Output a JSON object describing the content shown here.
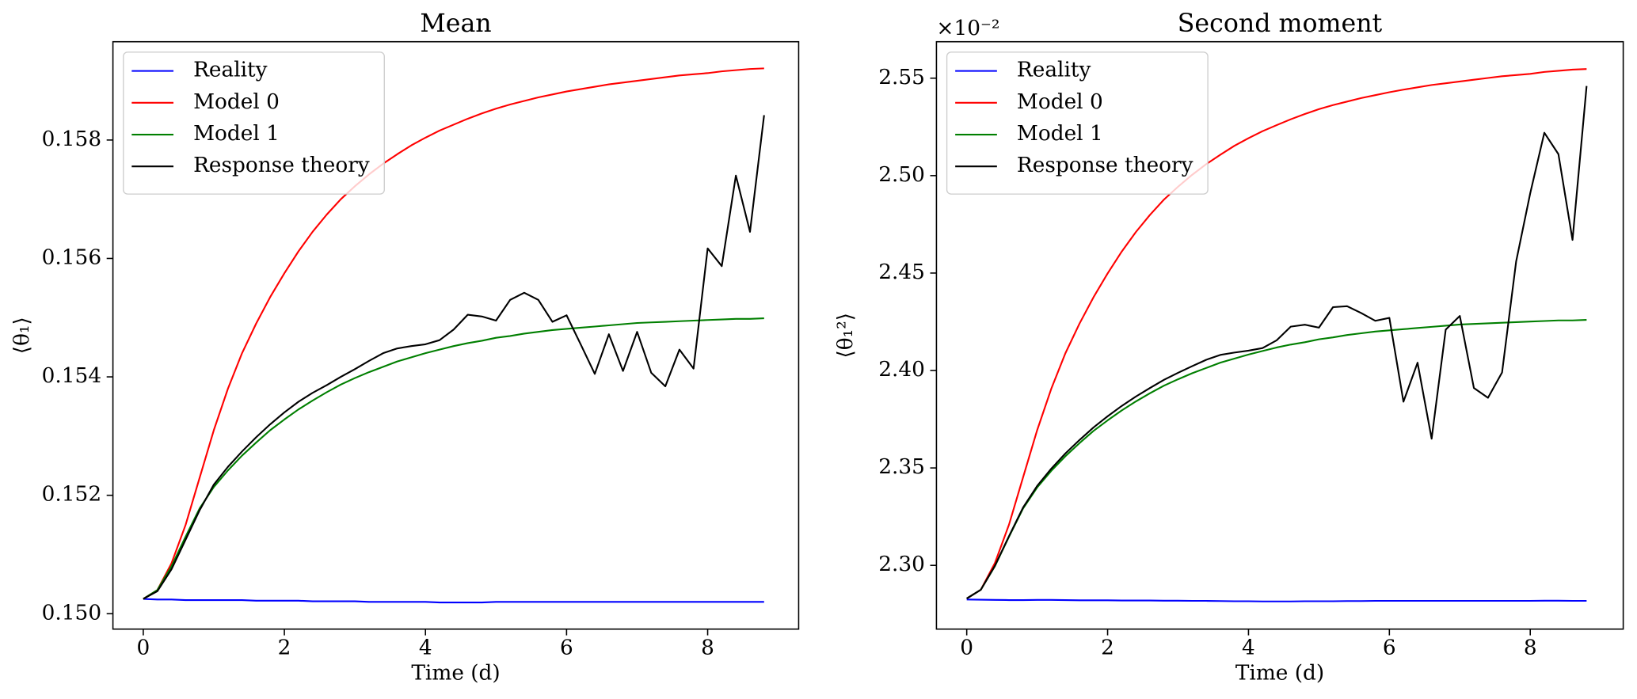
{
  "chart_data": [
    {
      "type": "line",
      "title": "Mean",
      "x_label": "Time (d)",
      "y_label": "⟨θ₁⟩",
      "x": [
        0,
        0.2,
        0.4,
        0.6,
        0.8,
        1.0,
        1.2,
        1.4,
        1.6,
        1.8,
        2.0,
        2.2,
        2.4,
        2.6,
        2.8,
        3.0,
        3.2,
        3.4,
        3.6,
        3.8,
        4.0,
        4.2,
        4.4,
        4.6,
        4.8,
        5.0,
        5.2,
        5.4,
        5.6,
        5.8,
        6.0,
        6.2,
        6.4,
        6.6,
        6.8,
        7.0,
        7.2,
        7.4,
        7.6,
        7.8,
        8.0,
        8.2,
        8.4,
        8.6,
        8.8
      ],
      "xlim": [
        -0.43,
        9.29
      ],
      "xticks": [
        0,
        2,
        4,
        6,
        8
      ],
      "ylim": [
        0.14974,
        0.15966
      ],
      "yticks": [
        {
          "value": 0.15,
          "label": "0.150"
        },
        0.152,
        0.154,
        0.156,
        0.158
      ],
      "legend": "upper left",
      "series": [
        {
          "name": "Reality",
          "color": "#0000ff",
          "values": [
            0.15025,
            0.15024,
            0.15024,
            0.15023,
            0.15023,
            0.15023,
            0.15023,
            0.15023,
            0.15022,
            0.15022,
            0.15022,
            0.15022,
            0.15021,
            0.15021,
            0.15021,
            0.15021,
            0.1502,
            0.1502,
            0.1502,
            0.1502,
            0.1502,
            0.15019,
            0.15019,
            0.15019,
            0.15019,
            0.1502,
            0.1502,
            0.1502,
            0.1502,
            0.1502,
            0.1502,
            0.1502,
            0.1502,
            0.1502,
            0.1502,
            0.1502,
            0.1502,
            0.1502,
            0.1502,
            0.1502,
            0.1502,
            0.1502,
            0.1502,
            0.1502,
            0.1502
          ]
        },
        {
          "name": "Model 0",
          "color": "#ff0000",
          "values": [
            0.15025,
            0.1504,
            0.15085,
            0.1515,
            0.1523,
            0.1531,
            0.1538,
            0.1544,
            0.1549,
            0.15535,
            0.15575,
            0.15612,
            0.15645,
            0.15674,
            0.157,
            0.15722,
            0.15742,
            0.1576,
            0.15776,
            0.15791,
            0.15804,
            0.15816,
            0.15826,
            0.15836,
            0.15845,
            0.15853,
            0.1586,
            0.15866,
            0.15872,
            0.15877,
            0.15882,
            0.15886,
            0.1589,
            0.15894,
            0.15897,
            0.159,
            0.15903,
            0.15906,
            0.15909,
            0.15911,
            0.15913,
            0.15916,
            0.15918,
            0.1592,
            0.15921
          ]
        },
        {
          "name": "Model 1",
          "color": "#007f00",
          "values": [
            0.15025,
            0.1504,
            0.1508,
            0.1513,
            0.15178,
            0.15214,
            0.15242,
            0.15267,
            0.15289,
            0.1531,
            0.15328,
            0.15345,
            0.1536,
            0.15374,
            0.15387,
            0.15398,
            0.15408,
            0.15417,
            0.15426,
            0.15433,
            0.1544,
            0.15446,
            0.15452,
            0.15457,
            0.15461,
            0.15466,
            0.15469,
            0.15473,
            0.15476,
            0.15479,
            0.15481,
            0.15483,
            0.15485,
            0.15487,
            0.15489,
            0.15491,
            0.15492,
            0.15493,
            0.15494,
            0.15495,
            0.15496,
            0.15497,
            0.15498,
            0.15498,
            0.15499
          ]
        },
        {
          "name": "Response theory",
          "color": "#000000",
          "values": [
            0.15025,
            0.15038,
            0.15075,
            0.15125,
            0.15175,
            0.15218,
            0.15248,
            0.15274,
            0.15298,
            0.1532,
            0.1534,
            0.15358,
            0.15373,
            0.15386,
            0.154,
            0.15413,
            0.15427,
            0.1544,
            0.15448,
            0.15452,
            0.15455,
            0.15462,
            0.1548,
            0.15505,
            0.15502,
            0.15495,
            0.1553,
            0.15542,
            0.1553,
            0.15493,
            0.15504,
            0.15455,
            0.15405,
            0.15472,
            0.1541,
            0.15476,
            0.15407,
            0.15384,
            0.15446,
            0.15414,
            0.15617,
            0.15587,
            0.1574,
            0.15645,
            0.15842
          ]
        }
      ]
    },
    {
      "type": "line",
      "title": "Second moment",
      "x_label": "Time (d)",
      "y_label": "⟨θ₁²⟩",
      "y_offset_label": "×10⁻²",
      "x": [
        0,
        0.2,
        0.4,
        0.6,
        0.8,
        1.0,
        1.2,
        1.4,
        1.6,
        1.8,
        2.0,
        2.2,
        2.4,
        2.6,
        2.8,
        3.0,
        3.2,
        3.4,
        3.6,
        3.8,
        4.0,
        4.2,
        4.4,
        4.6,
        4.8,
        5.0,
        5.2,
        5.4,
        5.6,
        5.8,
        6.0,
        6.2,
        6.4,
        6.6,
        6.8,
        7.0,
        7.2,
        7.4,
        7.6,
        7.8,
        8.0,
        8.2,
        8.4,
        8.6,
        8.8
      ],
      "xlim": [
        -0.43,
        9.32
      ],
      "xticks": [
        0,
        2,
        4,
        6,
        8
      ],
      "ylim": [
        2.2673,
        2.5687
      ],
      "yticks": [
        {
          "value": 2.3,
          "label": "2.30"
        },
        2.35,
        {
          "value": 2.4,
          "label": "2.40"
        },
        2.45,
        {
          "value": 2.5,
          "label": "2.50"
        },
        2.55
      ],
      "legend": "upper left",
      "series": [
        {
          "name": "Reality",
          "color": "#0000ff",
          "values": [
            2.2825,
            2.2824,
            2.2823,
            2.2822,
            2.2822,
            2.2823,
            2.2823,
            2.2822,
            2.2821,
            2.2821,
            2.2821,
            2.282,
            2.282,
            2.282,
            2.2819,
            2.2819,
            2.2818,
            2.2818,
            2.2817,
            2.2816,
            2.2816,
            2.2815,
            2.2815,
            2.2815,
            2.2816,
            2.2816,
            2.2816,
            2.2817,
            2.2817,
            2.2818,
            2.2818,
            2.2818,
            2.2818,
            2.2818,
            2.2818,
            2.2818,
            2.2818,
            2.2818,
            2.2818,
            2.2818,
            2.2818,
            2.2819,
            2.2819,
            2.2818,
            2.2818
          ]
        },
        {
          "name": "Model 0",
          "color": "#ff0000",
          "values": [
            2.283,
            2.2875,
            2.3012,
            2.3209,
            2.3452,
            2.3694,
            2.3906,
            2.4088,
            2.424,
            2.4376,
            2.4498,
            2.461,
            2.471,
            2.4798,
            2.4877,
            2.4943,
            2.5004,
            2.5059,
            2.5107,
            2.5153,
            2.5192,
            2.5228,
            2.5259,
            2.5289,
            2.5316,
            2.5341,
            2.5362,
            2.538,
            2.5398,
            2.5413,
            2.5428,
            2.5441,
            2.5453,
            2.5465,
            2.5474,
            2.5483,
            2.5492,
            2.5501,
            2.551,
            2.5516,
            2.5522,
            2.5532,
            2.5538,
            2.5544,
            2.5547
          ]
        },
        {
          "name": "Model 1",
          "color": "#007f00",
          "values": [
            2.283,
            2.2875,
            2.2996,
            2.3147,
            2.3292,
            2.34,
            2.3485,
            2.356,
            2.3627,
            2.369,
            2.3744,
            2.3795,
            2.3841,
            2.3883,
            2.3922,
            2.3955,
            2.3986,
            2.4013,
            2.404,
            2.4061,
            2.4082,
            2.41,
            2.4118,
            2.4133,
            2.4145,
            2.416,
            2.417,
            2.4182,
            2.4191,
            2.42,
            2.4206,
            2.4212,
            2.4218,
            2.4224,
            2.423,
            2.4236,
            2.4239,
            2.4242,
            2.4245,
            2.4248,
            2.4251,
            2.4254,
            2.4257,
            2.4257,
            2.426
          ]
        },
        {
          "name": "Response theory",
          "color": "#000000",
          "values": [
            2.283,
            2.2875,
            2.2998,
            2.315,
            2.3297,
            2.3408,
            2.3496,
            2.3574,
            2.3643,
            2.3708,
            2.3765,
            2.3818,
            2.3866,
            2.391,
            2.3952,
            2.3988,
            2.4022,
            2.4055,
            2.408,
            2.4092,
            2.4102,
            2.4115,
            2.4155,
            2.4225,
            2.4235,
            2.422,
            2.4325,
            2.433,
            2.4295,
            2.4255,
            2.427,
            2.384,
            2.404,
            2.365,
            2.421,
            2.428,
            2.391,
            2.386,
            2.399,
            2.456,
            2.491,
            2.522,
            2.511,
            2.467,
            2.546
          ]
        }
      ]
    }
  ]
}
